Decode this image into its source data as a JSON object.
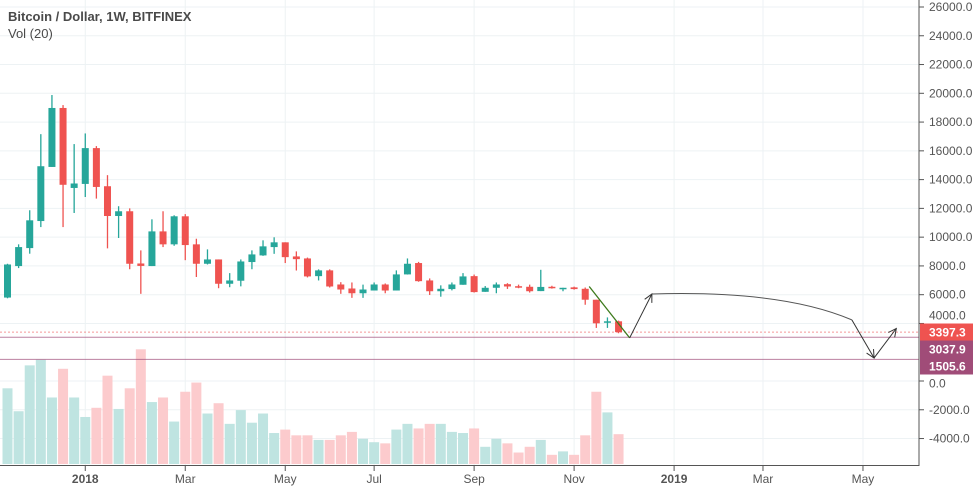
{
  "header": {
    "title": "Bitcoin / Dollar, 1W, BITFINEX",
    "indicator": "Vol (20)"
  },
  "colors": {
    "up": "#26a69a",
    "down": "#ef5350",
    "vol_up": "#bfe4e1",
    "vol_down": "#fccbcd",
    "last_price": "#ef5350",
    "alert": "#a04c78",
    "grid": "#edf2f4"
  },
  "chart_data": {
    "type": "candlestick",
    "interval": "1W",
    "first_week": "2017-11-13",
    "y_ticks": [
      "26000.0",
      "24000.0",
      "22000.0",
      "20000.0",
      "18000.0",
      "16000.0",
      "14000.0",
      "12000.0",
      "10000.0",
      "8000.0",
      "6000.0",
      "4000.0",
      "0.0",
      "-2000.0",
      "-4000.0"
    ],
    "y_tick_values": [
      26000,
      24000,
      22000,
      20000,
      18000,
      16000,
      14000,
      12000,
      10000,
      8000,
      6000,
      4000,
      0,
      -2000,
      -4000
    ],
    "x_ticks": [
      {
        "label": "2018",
        "date": "2018-01-01",
        "bold": true
      },
      {
        "label": "Mar",
        "date": "2018-03-05"
      },
      {
        "label": "May",
        "date": "2018-05-07"
      },
      {
        "label": "Jul",
        "date": "2018-07-02"
      },
      {
        "label": "Sep",
        "date": "2018-09-03"
      },
      {
        "label": "Nov",
        "date": "2018-11-05"
      },
      {
        "label": "2019",
        "date": "2019-01-07",
        "bold": true
      },
      {
        "label": "Mar",
        "date": "2019-03-04"
      },
      {
        "label": "May",
        "date": "2019-05-06"
      }
    ],
    "ohlc": [
      [
        5800,
        8150,
        5750,
        8100
      ],
      [
        7990,
        9500,
        7850,
        9310
      ],
      [
        9240,
        11870,
        8850,
        11170
      ],
      [
        11120,
        17160,
        10700,
        14930
      ],
      [
        14880,
        19880,
        14880,
        18980
      ],
      [
        18980,
        19180,
        10700,
        13640
      ],
      [
        13420,
        16470,
        11680,
        13730
      ],
      [
        13700,
        17210,
        12790,
        16190
      ],
      [
        16190,
        16330,
        12680,
        13490
      ],
      [
        13540,
        14310,
        9220,
        11470
      ],
      [
        11470,
        12150,
        9940,
        11800
      ],
      [
        11800,
        12000,
        7770,
        8150
      ],
      [
        8170,
        9080,
        6060,
        8000
      ],
      [
        7990,
        11240,
        7990,
        10400
      ],
      [
        10400,
        11800,
        9310,
        9500
      ],
      [
        9500,
        11520,
        9400,
        11450
      ],
      [
        11450,
        11600,
        8400,
        9450
      ],
      [
        9500,
        9890,
        7230,
        8150
      ],
      [
        8150,
        9150,
        8100,
        8450
      ],
      [
        8450,
        8450,
        6450,
        6760
      ],
      [
        6760,
        7500,
        6520,
        6990
      ],
      [
        6970,
        8450,
        6580,
        8310
      ],
      [
        8270,
        9080,
        7770,
        8800
      ],
      [
        8730,
        9780,
        8700,
        9360
      ],
      [
        9310,
        9990,
        8840,
        9640
      ],
      [
        9640,
        9640,
        8200,
        8610
      ],
      [
        8660,
        9010,
        7680,
        8470
      ],
      [
        8520,
        8580,
        7200,
        7270
      ],
      [
        7290,
        7760,
        6990,
        7690
      ],
      [
        7690,
        7760,
        6500,
        6570
      ],
      [
        6710,
        6870,
        6060,
        6360
      ],
      [
        6430,
        6850,
        5780,
        6100
      ],
      [
        6100,
        6700,
        5780,
        6360
      ],
      [
        6290,
        6850,
        6290,
        6710
      ],
      [
        6710,
        6780,
        6100,
        6290
      ],
      [
        6290,
        7690,
        6290,
        7410
      ],
      [
        7410,
        8520,
        7400,
        8150
      ],
      [
        8200,
        8280,
        6900,
        6940
      ],
      [
        6990,
        7130,
        5980,
        6240
      ],
      [
        6240,
        6650,
        5860,
        6410
      ],
      [
        6390,
        6850,
        6300,
        6710
      ],
      [
        6690,
        7500,
        6690,
        7270
      ],
      [
        7290,
        7400,
        6150,
        6180
      ],
      [
        6200,
        6600,
        6200,
        6480
      ],
      [
        6480,
        6850,
        6100,
        6710
      ],
      [
        6730,
        6800,
        6400,
        6570
      ],
      [
        6590,
        6700,
        6450,
        6500
      ],
      [
        6550,
        6700,
        6150,
        6240
      ],
      [
        6250,
        7730,
        6250,
        6540
      ],
      [
        6550,
        6620,
        6420,
        6460
      ],
      [
        6430,
        6480,
        6240,
        6480
      ],
      [
        6510,
        6560,
        6350,
        6390
      ],
      [
        6410,
        6500,
        5300,
        5650
      ],
      [
        5650,
        5650,
        3690,
        4010
      ],
      [
        4080,
        4420,
        3690,
        4150
      ],
      [
        4150,
        4200,
        3320,
        3397.3
      ]
    ],
    "volume_relative": [
      66,
      46,
      86,
      91,
      58,
      83,
      58,
      41,
      49,
      77,
      48,
      66,
      100,
      54,
      58,
      37,
      63,
      71,
      44,
      53,
      35,
      47,
      36,
      44,
      27,
      30,
      25,
      25,
      21,
      21,
      25,
      28,
      22,
      19,
      18,
      30,
      35,
      31,
      35,
      35,
      28,
      27,
      31,
      15,
      22,
      18,
      10,
      15,
      21,
      8,
      11,
      8,
      25,
      63,
      45,
      26
    ],
    "price_lines": [
      {
        "label": "3397.3",
        "value": 3397.3,
        "kind": "last_price",
        "style": "dotted"
      },
      {
        "label": "3037.9",
        "value": 3037.9,
        "kind": "alert",
        "style": "solid"
      },
      {
        "label": "1505.6",
        "value": 1505.6,
        "kind": "alert",
        "style": "solid"
      }
    ],
    "drawings": {
      "trend_line": [
        [
          "2018-11-12",
          6500
        ],
        [
          "2018-12-10",
          3000
        ]
      ],
      "projection_path": [
        [
          "2018-12-10",
          3000
        ],
        [
          "2018-12-24",
          6050
        ],
        [
          "2019-04-29",
          4250
        ],
        [
          "2019-05-13",
          1600
        ],
        [
          "2019-05-27",
          3650
        ]
      ]
    }
  }
}
